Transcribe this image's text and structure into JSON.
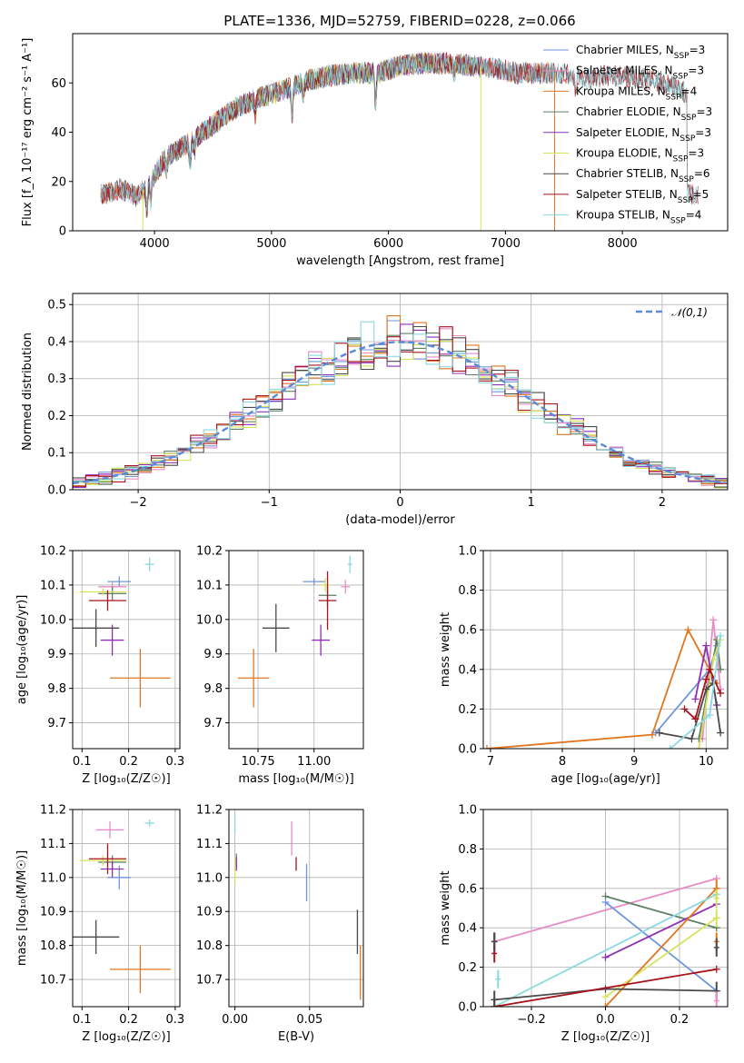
{
  "figure": {
    "title": "PLATE=1336, MJD=52759, FIBERID=0228, z=0.066"
  },
  "colors": {
    "Chabrier MILES": "#6f96dc",
    "Salpeter MILES": "#e88cc6",
    "Kroupa MILES": "#e0761e",
    "Chabrier ELODIE": "#5e8064",
    "Salpeter ELODIE": "#8e2fb5",
    "Kroupa ELODIE": "#d6e35a",
    "Chabrier STELIB": "#4a4a4a",
    "Salpeter STELIB": "#a8141c",
    "Kroupa STELIB": "#8ad8e0"
  },
  "chart_data": [
    {
      "id": "spectrum",
      "type": "line",
      "xlabel": "wavelength [Angstrom, rest frame]",
      "ylabel": "Flux [f_λ 10⁻¹⁷ erg cm⁻² s⁻¹ A⁻¹]",
      "xlim": [
        3300,
        8900
      ],
      "ylim": [
        0,
        80
      ],
      "xticks": [
        4000,
        5000,
        6000,
        7000,
        8000
      ],
      "yticks": [
        0,
        20,
        40,
        60
      ],
      "legend_loc": "upper right",
      "legend": [
        "Chabrier MILES, N_SSP=3",
        "Salpeter MILES, N_SSP=3",
        "Kroupa MILES, N_SSP=4",
        "Chabrier ELODIE, N_SSP=3",
        "Salpeter ELODIE, N_SSP=3",
        "Kroupa ELODIE, N_SSP=3",
        "Chabrier STELIB, N_SSP=6",
        "Salpeter STELIB, N_SSP=5",
        "Kroupa STELIB, N_SSP=4"
      ],
      "continuum": [
        [
          3580,
          15
        ],
        [
          3700,
          17
        ],
        [
          3850,
          14
        ],
        [
          3950,
          19
        ],
        [
          4100,
          30
        ],
        [
          4300,
          36
        ],
        [
          4500,
          43
        ],
        [
          4700,
          50
        ],
        [
          4900,
          54
        ],
        [
          5100,
          57
        ],
        [
          5300,
          61
        ],
        [
          5500,
          63
        ],
        [
          5700,
          64
        ],
        [
          5900,
          64
        ],
        [
          6100,
          67
        ],
        [
          6300,
          68
        ],
        [
          6500,
          68
        ],
        [
          6700,
          67
        ],
        [
          6900,
          66
        ],
        [
          7100,
          64
        ],
        [
          7300,
          64
        ],
        [
          7500,
          64
        ],
        [
          7700,
          62
        ],
        [
          7900,
          63
        ],
        [
          8100,
          62
        ],
        [
          8300,
          61
        ],
        [
          8500,
          58
        ],
        [
          8550,
          55
        ]
      ],
      "absorption_lines": [
        [
          3934,
          -10
        ],
        [
          3968,
          -8
        ],
        [
          4102,
          -5
        ],
        [
          4304,
          -8
        ],
        [
          4340,
          -5
        ],
        [
          4861,
          -6
        ],
        [
          5175,
          -12
        ],
        [
          5270,
          -5
        ],
        [
          5890,
          -12
        ],
        [
          6563,
          -4
        ],
        [
          7600,
          -6
        ]
      ],
      "series_ranges": [
        {
          "name": "Chabrier MILES",
          "x": [
            3540,
            7430
          ]
        },
        {
          "name": "Salpeter MILES",
          "x": [
            3540,
            7430
          ]
        },
        {
          "name": "Kroupa MILES",
          "x": [
            3540,
            7430
          ]
        },
        {
          "name": "Chabrier ELODIE",
          "x": [
            3900,
            6800
          ]
        },
        {
          "name": "Salpeter ELODIE",
          "x": [
            3900,
            6800
          ]
        },
        {
          "name": "Kroupa ELODIE",
          "x": [
            3900,
            6800
          ]
        },
        {
          "name": "Chabrier STELIB",
          "x": [
            3540,
            8650
          ]
        },
        {
          "name": "Salpeter STELIB",
          "x": [
            3540,
            8650
          ]
        },
        {
          "name": "Kroupa STELIB",
          "x": [
            3540,
            8650
          ]
        }
      ]
    },
    {
      "id": "residuals",
      "type": "line",
      "xlabel": "(data-model)/error",
      "ylabel": "Normed distribution",
      "xlim": [
        -2.5,
        2.5
      ],
      "ylim": [
        0,
        0.53
      ],
      "xticks": [
        -2,
        -1,
        0,
        1,
        2
      ],
      "yticks": [
        0.0,
        0.1,
        0.2,
        0.3,
        0.4,
        0.5
      ],
      "legend": [
        "𝒩(0,1)"
      ],
      "legend_loc": "upper right",
      "bin_width": 0.1,
      "histograms": "nine step histograms (one per model) scattered around the standard normal density"
    },
    {
      "id": "age-vs-Z",
      "type": "scatter",
      "xlabel": "Z [log₁₀(Z/Z☉)]",
      "ylabel": "age  [log₁₀(age/yr)]",
      "xlim": [
        0.08,
        0.31
      ],
      "ylim": [
        9.625,
        10.2
      ],
      "xticks": [
        0.1,
        0.2,
        0.3
      ],
      "yticks": [
        9.7,
        9.8,
        9.9,
        10.0,
        10.1,
        10.2
      ],
      "points": [
        {
          "name": "Chabrier MILES",
          "x": 0.18,
          "y": 10.11,
          "xerr": 0.025,
          "yerr": 0.015
        },
        {
          "name": "Salpeter MILES",
          "x": 0.165,
          "y": 10.095,
          "xerr": 0.03,
          "yerr": 0.015
        },
        {
          "name": "Kroupa MILES",
          "x": 0.225,
          "y": 9.83,
          "xerr": 0.065,
          "yerr": 0.085
        },
        {
          "name": "Chabrier ELODIE",
          "x": 0.165,
          "y": 10.075,
          "xerr": 0.03,
          "yerr": 0.02
        },
        {
          "name": "Salpeter ELODIE",
          "x": 0.165,
          "y": 9.94,
          "xerr": 0.025,
          "yerr": 0.045
        },
        {
          "name": "Kroupa ELODIE",
          "x": 0.145,
          "y": 10.08,
          "xerr": 0.05,
          "yerr": 0.01
        },
        {
          "name": "Chabrier STELIB",
          "x": 0.13,
          "y": 9.975,
          "xerr": 0.05,
          "yerr": 0.055
        },
        {
          "name": "Salpeter STELIB",
          "x": 0.155,
          "y": 10.055,
          "xerr": 0.04,
          "yerr": 0.03
        },
        {
          "name": "Kroupa STELIB",
          "x": 0.245,
          "y": 10.16,
          "xerr": 0.01,
          "yerr": 0.02
        }
      ]
    },
    {
      "id": "age-vs-mass",
      "type": "scatter",
      "xlabel": "mass [log₁₀(M/M☉)]",
      "ylabel": "",
      "xlim": [
        10.62,
        11.22
      ],
      "ylim": [
        9.625,
        10.2
      ],
      "xticks": [
        10.75,
        11.0
      ],
      "yticks": [
        9.7,
        9.8,
        9.9,
        10.0,
        10.1,
        10.2
      ],
      "points": [
        {
          "name": "Chabrier MILES",
          "x": 11.0,
          "y": 10.11,
          "xerr": 0.05,
          "yerr": 0.01
        },
        {
          "name": "Salpeter MILES",
          "x": 11.14,
          "y": 10.095,
          "xerr": 0.02,
          "yerr": 0.02
        },
        {
          "name": "Kroupa MILES",
          "x": 10.73,
          "y": 9.83,
          "xerr": 0.07,
          "yerr": 0.085
        },
        {
          "name": "Chabrier ELODIE",
          "x": 11.06,
          "y": 10.07,
          "xerr": 0.04,
          "yerr": 0.03
        },
        {
          "name": "Salpeter ELODIE",
          "x": 11.03,
          "y": 9.94,
          "xerr": 0.04,
          "yerr": 0.045
        },
        {
          "name": "Kroupa ELODIE",
          "x": 11.05,
          "y": 10.1,
          "xerr": 0.02,
          "yerr": 0.02
        },
        {
          "name": "Chabrier STELIB",
          "x": 10.83,
          "y": 9.975,
          "xerr": 0.06,
          "yerr": 0.07
        },
        {
          "name": "Salpeter STELIB",
          "x": 11.06,
          "y": 10.055,
          "xerr": 0.04,
          "yerr": 0.085
        },
        {
          "name": "Kroupa STELIB",
          "x": 11.16,
          "y": 10.16,
          "xerr": 0.01,
          "yerr": 0.025
        }
      ]
    },
    {
      "id": "massweight-vs-age",
      "type": "line",
      "xlabel": "age  [log₁₀(age/yr)]",
      "ylabel": "mass weight",
      "xlim": [
        6.9,
        10.3
      ],
      "ylim": [
        0,
        1.0
      ],
      "xticks": [
        7,
        8,
        9,
        10
      ],
      "yticks": [
        0.0,
        0.2,
        0.4,
        0.6,
        0.8,
        1.0
      ],
      "series": [
        {
          "name": "Kroupa MILES",
          "x": [
            6.95,
            9.25,
            9.75,
            10.15
          ],
          "y": [
            0.0,
            0.07,
            0.6,
            0.33
          ]
        },
        {
          "name": "Chabrier MILES",
          "x": [
            9.3,
            10.05,
            10.15
          ],
          "y": [
            0.08,
            0.4,
            0.52
          ]
        },
        {
          "name": "Salpeter MILES",
          "x": [
            9.95,
            10.1,
            10.2
          ],
          "y": [
            0.05,
            0.65,
            0.3
          ]
        },
        {
          "name": "Chabrier ELODIE",
          "x": [
            9.9,
            10.15,
            10.2
          ],
          "y": [
            0.05,
            0.55,
            0.4
          ]
        },
        {
          "name": "Salpeter ELODIE",
          "x": [
            9.85,
            10.0,
            10.15
          ],
          "y": [
            0.25,
            0.52,
            0.22
          ]
        },
        {
          "name": "Kroupa ELODIE",
          "x": [
            9.9,
            10.1,
            10.2
          ],
          "y": [
            0.0,
            0.45,
            0.55
          ]
        },
        {
          "name": "Chabrier STELIB",
          "x": [
            9.35,
            9.8,
            10.0,
            10.1,
            10.2
          ],
          "y": [
            0.08,
            0.05,
            0.3,
            0.33,
            0.08
          ]
        },
        {
          "name": "Salpeter STELIB",
          "x": [
            9.7,
            9.85,
            10.0,
            10.05,
            10.2
          ],
          "y": [
            0.2,
            0.15,
            0.35,
            0.4,
            0.28
          ]
        },
        {
          "name": "Kroupa STELIB",
          "x": [
            9.5,
            10.05,
            10.2
          ],
          "y": [
            0.0,
            0.17,
            0.57
          ]
        }
      ]
    },
    {
      "id": "mass-vs-Z",
      "type": "scatter",
      "xlabel": "Z [log₁₀(Z/Z☉)]",
      "ylabel": "mass [log₁₀(M/M☉)]",
      "xlim": [
        0.08,
        0.31
      ],
      "ylim": [
        10.62,
        11.2
      ],
      "xticks": [
        0.1,
        0.2,
        0.3
      ],
      "yticks": [
        10.7,
        10.8,
        10.9,
        11.0,
        11.1,
        11.2
      ],
      "points": [
        {
          "name": "Chabrier MILES",
          "x": 0.18,
          "y": 11.0,
          "xerr": 0.025,
          "yerr": 0.035
        },
        {
          "name": "Salpeter MILES",
          "x": 0.16,
          "y": 11.14,
          "xerr": 0.03,
          "yerr": 0.025
        },
        {
          "name": "Kroupa MILES",
          "x": 0.225,
          "y": 10.73,
          "xerr": 0.065,
          "yerr": 0.07
        },
        {
          "name": "Chabrier ELODIE",
          "x": 0.165,
          "y": 11.045,
          "xerr": 0.03,
          "yerr": 0.02
        },
        {
          "name": "Salpeter ELODIE",
          "x": 0.165,
          "y": 11.025,
          "xerr": 0.025,
          "yerr": 0.025
        },
        {
          "name": "Kroupa ELODIE",
          "x": 0.145,
          "y": 11.05,
          "xerr": 0.05,
          "yerr": 0.015
        },
        {
          "name": "Chabrier STELIB",
          "x": 0.13,
          "y": 10.825,
          "xerr": 0.05,
          "yerr": 0.05
        },
        {
          "name": "Salpeter STELIB",
          "x": 0.155,
          "y": 11.055,
          "xerr": 0.04,
          "yerr": 0.045
        },
        {
          "name": "Kroupa STELIB",
          "x": 0.245,
          "y": 11.16,
          "xerr": 0.01,
          "yerr": 0.01
        }
      ]
    },
    {
      "id": "mass-vs-ebv",
      "type": "scatter",
      "xlabel": "E(B-V)",
      "ylabel": "",
      "xlim": [
        -0.004,
        0.086
      ],
      "ylim": [
        10.62,
        11.2
      ],
      "xticks": [
        0.0,
        0.05
      ],
      "yticks": [
        10.7,
        10.8,
        10.9,
        11.0,
        11.1,
        11.2
      ],
      "points": [
        {
          "name": "Chabrier MILES",
          "x": 0.048,
          "y": 10.985,
          "yerr": 0.055
        },
        {
          "name": "Salpeter MILES",
          "x": 0.038,
          "y": 11.115,
          "yerr": 0.05
        },
        {
          "name": "Kroupa MILES",
          "x": 0.084,
          "y": 10.72,
          "yerr": 0.08
        },
        {
          "name": "Chabrier ELODIE",
          "x": 0.001,
          "y": 11.05,
          "yerr": 0.02
        },
        {
          "name": "Salpeter ELODIE",
          "x": 0.001,
          "y": 11.04,
          "yerr": 0.02
        },
        {
          "name": "Kroupa ELODIE",
          "x": 0.0,
          "y": 11.02,
          "yerr": 0.04
        },
        {
          "name": "Chabrier STELIB",
          "x": 0.082,
          "y": 10.84,
          "yerr": 0.065
        },
        {
          "name": "Salpeter STELIB",
          "x": 0.041,
          "y": 11.04,
          "yerr": 0.02
        },
        {
          "name": "Kroupa STELIB",
          "x": 0.0,
          "y": 11.16,
          "yerr": 0.03
        }
      ]
    },
    {
      "id": "massweight-vs-Z",
      "type": "line",
      "xlabel": "Z [log₁₀(Z/Z☉)]",
      "ylabel": "mass weight",
      "xlim": [
        -0.33,
        0.33
      ],
      "ylim": [
        0,
        1.0
      ],
      "xticks": [
        -0.2,
        0.0,
        0.2
      ],
      "yticks": [
        0.0,
        0.2,
        0.4,
        0.6,
        0.8,
        1.0
      ],
      "series": [
        {
          "name": "Salpeter MILES",
          "x": [
            -0.3,
            0.3
          ],
          "y": [
            0.33,
            0.65
          ]
        },
        {
          "name": "Chabrier ELODIE",
          "x": [
            0.0,
            0.3
          ],
          "y": [
            0.56,
            0.4
          ]
        },
        {
          "name": "Chabrier MILES",
          "x": [
            0.0,
            0.3
          ],
          "y": [
            0.53,
            0.08
          ]
        },
        {
          "name": "Salpeter ELODIE",
          "x": [
            0.0,
            0.3
          ],
          "y": [
            0.25,
            0.52
          ]
        },
        {
          "name": "Kroupa MILES",
          "x": [
            0.0,
            0.3
          ],
          "y": [
            0.0,
            0.6
          ]
        },
        {
          "name": "Kroupa STELIB",
          "x": [
            -0.3,
            0.3
          ],
          "y": [
            0.0,
            0.57
          ]
        },
        {
          "name": "Kroupa ELODIE",
          "x": [
            0.0,
            0.3
          ],
          "y": [
            0.05,
            0.45
          ]
        },
        {
          "name": "Chabrier STELIB",
          "x": [
            -0.3,
            0.0,
            0.3
          ],
          "y": [
            0.035,
            0.09,
            0.08
          ]
        },
        {
          "name": "Salpeter STELIB",
          "x": [
            -0.3,
            0.3
          ],
          "y": [
            0.0,
            0.19
          ]
        }
      ],
      "edge_markers": [
        {
          "name": "Salpeter STELIB",
          "x": -0.3,
          "y": [
            0.0,
            0.27,
            0.33
          ]
        },
        {
          "name": "Chabrier STELIB",
          "x": -0.3,
          "y": [
            0.035,
            0.33
          ]
        },
        {
          "name": "Kroupa STELIB",
          "x": -0.29,
          "y": [
            0.14
          ]
        },
        {
          "name": "Kroupa MILES",
          "x": 0.3,
          "y": [
            0.6,
            0.33
          ]
        },
        {
          "name": "Kroupa ELODIE",
          "x": 0.3,
          "y": [
            0.45,
            0.55
          ]
        },
        {
          "name": "Chabrier STELIB",
          "x": 0.3,
          "y": [
            0.3,
            0.08
          ]
        },
        {
          "name": "Salpeter MILES",
          "x": 0.3,
          "y": [
            0.03
          ]
        }
      ]
    }
  ]
}
